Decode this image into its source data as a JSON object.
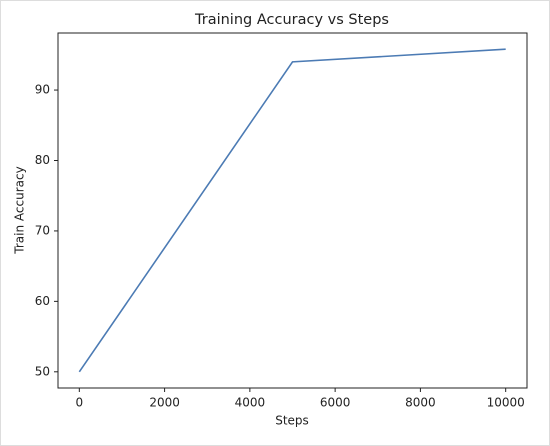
{
  "chart_data": {
    "type": "line",
    "title": "Training Accuracy vs Steps",
    "x_label": "Steps",
    "y_label": "Train Accuracy",
    "x": [
      0,
      5000,
      10000
    ],
    "series": [
      {
        "name": "Train Accuracy",
        "color": "#4c7bb4",
        "values": [
          50,
          94,
          95.8
        ]
      }
    ],
    "xlim": [
      -500,
      10500
    ],
    "xticks": [
      0,
      2000,
      4000,
      6000,
      8000,
      10000
    ],
    "ylim": [
      47.7,
      98.1
    ],
    "yticks": [
      50,
      60,
      70,
      80,
      90
    ],
    "grid": false
  }
}
